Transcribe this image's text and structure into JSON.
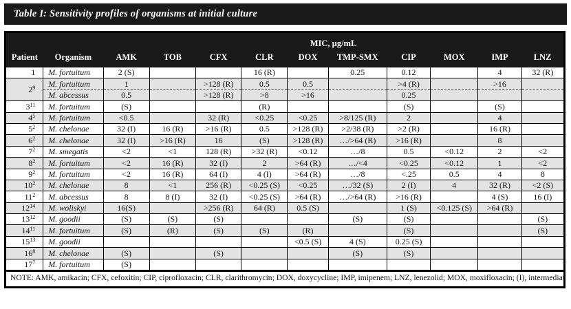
{
  "title": "Table I: Sensitivity profiles of organisms at initial culture",
  "table": {
    "mic_header": "MIC, µg/mL",
    "columns": [
      "Patient",
      "Organism",
      "AMK",
      "TOB",
      "CFX",
      "CLR",
      "DOX",
      "TMP-SMX",
      "CIP",
      "MOX",
      "IMP",
      "LNZ"
    ],
    "rows": [
      {
        "patient": "1",
        "sup": "",
        "organism": "M. fortuitum",
        "shaded": false,
        "values": [
          "2 (S)",
          "",
          "",
          "16 (R)",
          "",
          "0.25",
          "0.12",
          "",
          "4",
          "32 (R)"
        ]
      },
      {
        "patient": "2",
        "sup": "9",
        "organism": "M. fortuitum",
        "shaded": true,
        "rowspan": 2,
        "values": [
          "1",
          "",
          ">128 (R)",
          "0.5",
          "0.5",
          "",
          ">4 (R)",
          "",
          ">16",
          ""
        ]
      },
      {
        "sub": true,
        "organism": "M. abcessus",
        "shaded": true,
        "values": [
          "0.5",
          "",
          ">128 (R)",
          ">8",
          ">16",
          "",
          "0.25",
          "",
          "",
          ""
        ]
      },
      {
        "patient": "3",
        "sup": "11",
        "organism": "M. fortuitum",
        "shaded": false,
        "values": [
          "(S)",
          "",
          "",
          "(R)",
          "",
          "",
          "(S)",
          "",
          "(S)",
          ""
        ]
      },
      {
        "patient": "4",
        "sup": "5",
        "organism": "M. fortuitum",
        "shaded": true,
        "values": [
          "<0.5",
          "",
          "32 (R)",
          "<0.25",
          "<0.25",
          ">8/125 (R)",
          "2",
          "",
          "4",
          ""
        ]
      },
      {
        "patient": "5",
        "sup": "2",
        "organism": "M. chelonae",
        "shaded": false,
        "values": [
          "32 (I)",
          "16 (R)",
          ">16 (R)",
          "0.5",
          ">128 (R)",
          ">2/38 (R)",
          ">2 (R)",
          "",
          "16 (R)",
          ""
        ]
      },
      {
        "patient": "6",
        "sup": "2",
        "organism": "M. chelonae",
        "shaded": true,
        "values": [
          "32 (I)",
          ">16 (R)",
          "16",
          "(S)",
          ">128 (R)",
          "…/>64 (R)",
          ">16 (R)",
          "",
          "8",
          ""
        ]
      },
      {
        "patient": "7",
        "sup": "2",
        "organism": "M. smegatis",
        "shaded": false,
        "values": [
          "<2",
          "<1",
          "128 (R)",
          ">32 (R)",
          "<0.12",
          "…/8",
          "0.5",
          "<0.12",
          "2",
          "<2"
        ]
      },
      {
        "patient": "8",
        "sup": "2",
        "organism": "M. fortuitum",
        "shaded": true,
        "values": [
          "<2",
          "16 (R)",
          "32 (I)",
          "2",
          ">64 (R)",
          "…/<4",
          "<0.25",
          "<0.12",
          "1",
          "<2"
        ]
      },
      {
        "patient": "9",
        "sup": "2",
        "organism": "M. fortuitum",
        "shaded": false,
        "values": [
          "<2",
          "16 (R)",
          "64 (I)",
          "4 (I)",
          ">64 (R)",
          "…/8",
          "<.25",
          "0.5",
          "4",
          "8"
        ]
      },
      {
        "patient": "10",
        "sup": "2",
        "organism": "M. chelonae",
        "shaded": true,
        "values": [
          "8",
          "<1",
          "256 (R)",
          "<0.25 (S)",
          "<0.25",
          "…/32 (S)",
          "2 (I)",
          "4",
          "32 (R)",
          "<2 (S)"
        ]
      },
      {
        "patient": "11",
        "sup": "2",
        "organism": "M. abcessus",
        "shaded": false,
        "values": [
          "8",
          "8 (I)",
          "32 (I)",
          "<0.25 (S)",
          ">64 (R)",
          "…/>64 (R)",
          ">16 (R)",
          "",
          "4 (S)",
          "16 (I)"
        ]
      },
      {
        "patient": "12",
        "sup": "14",
        "organism": "M. woliskyi",
        "shaded": true,
        "values": [
          "16(S)",
          "",
          ">256 (R)",
          "64 (R)",
          "0.5 (S)",
          "",
          "1 (S)",
          "<0.125 (S)",
          ">64 (R)",
          ""
        ]
      },
      {
        "patient": "13",
        "sup": "12",
        "organism": "M. goodii",
        "shaded": false,
        "values": [
          "(S)",
          "(S)",
          "(S)",
          "",
          "",
          "(S)",
          "(S)",
          "",
          "",
          "(S)"
        ]
      },
      {
        "patient": "14",
        "sup": "11",
        "organism": "M. fortuitum",
        "shaded": true,
        "values": [
          "(S)",
          "(R)",
          "(S)",
          "(S)",
          "(R)",
          "",
          "(S)",
          "",
          "",
          "(S)"
        ]
      },
      {
        "patient": "15",
        "sup": "13",
        "organism": "M. goodii",
        "shaded": false,
        "values": [
          "",
          "",
          "",
          "",
          "<0.5 (S)",
          "4 (S)",
          "0.25 (S)",
          "",
          "",
          ""
        ]
      },
      {
        "patient": "16",
        "sup": "8",
        "organism": "M. chelonae",
        "shaded": true,
        "values": [
          "(S)",
          "",
          "(S)",
          "",
          "",
          "(S)",
          "(S)",
          "",
          "",
          ""
        ]
      },
      {
        "patient": "17",
        "sup": "7",
        "organism": "M. fortuitum",
        "shaded": false,
        "values": [
          "(S)",
          "",
          "",
          "",
          "",
          "",
          "",
          "",
          "",
          ""
        ]
      }
    ],
    "note": "NOTE: AMK, amikacin; CFX, cefoxitin; CIP, ciprofloxacin; CLR, clarithromycin; DOX, doxycycline; IMP, imipenem; LNZ, lenezolid; MOX, moxifloxacin; (I), intermediate; (S), sensitive; (R) resistant."
  },
  "colors": {
    "bar": "#191919",
    "row_shade": "#e3e3e3",
    "border": "#000000"
  }
}
